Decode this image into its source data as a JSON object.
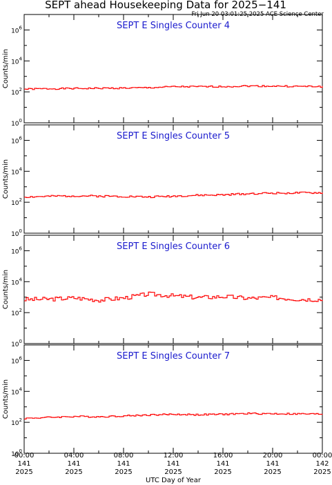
{
  "figure": {
    "title": "SEPT ahead Housekeeping Data for 2025−141",
    "timestamp": "Fri Jun 20 03:01:25 2025 ACE Science Center",
    "xlabel": "UTC Day of Year"
  },
  "chart_data": [
    {
      "type": "line",
      "title": "SEPT E Singles Counter 4",
      "ylabel": "Counts/min",
      "yscale": "log",
      "ylim": [
        1,
        10000000
      ],
      "yticks": [
        {
          "base": "10",
          "exp": "0"
        },
        {
          "base": "10",
          "exp": "2"
        },
        {
          "base": "10",
          "exp": "4"
        },
        {
          "base": "10",
          "exp": "6"
        }
      ],
      "xlim": [
        "141 00:00",
        "142 00:00"
      ],
      "color": "#ff0000",
      "x_hours": [
        0,
        2,
        4,
        6,
        8,
        10,
        12,
        14,
        16,
        18,
        20,
        22,
        24
      ],
      "values": [
        150,
        160,
        165,
        170,
        175,
        185,
        215,
        215,
        220,
        240,
        235,
        225,
        220
      ]
    },
    {
      "type": "line",
      "title": "SEPT E Singles Counter 5",
      "ylabel": "Counts/min",
      "yscale": "log",
      "ylim": [
        1,
        10000000
      ],
      "yticks": [
        {
          "base": "10",
          "exp": "0"
        },
        {
          "base": "10",
          "exp": "2"
        },
        {
          "base": "10",
          "exp": "4"
        },
        {
          "base": "10",
          "exp": "6"
        }
      ],
      "xlim": [
        "141 00:00",
        "142 00:00"
      ],
      "color": "#ff0000",
      "x_hours": [
        0,
        2,
        4,
        6,
        8,
        10,
        12,
        14,
        16,
        18,
        20,
        22,
        24
      ],
      "values": [
        220,
        240,
        260,
        250,
        240,
        220,
        250,
        280,
        300,
        360,
        390,
        400,
        410
      ]
    },
    {
      "type": "line",
      "title": "SEPT E Singles Counter 6",
      "ylabel": "Counts/min",
      "yscale": "log",
      "ylim": [
        1,
        10000000
      ],
      "yticks": [
        {
          "base": "10",
          "exp": "0"
        },
        {
          "base": "10",
          "exp": "2"
        },
        {
          "base": "10",
          "exp": "4"
        },
        {
          "base": "10",
          "exp": "6"
        }
      ],
      "xlim": [
        "141 00:00",
        "142 00:00"
      ],
      "color": "#ff0000",
      "x_hours": [
        0,
        2,
        4,
        6,
        8,
        10,
        12,
        14,
        16,
        18,
        20,
        22,
        24
      ],
      "values": [
        700,
        750,
        900,
        650,
        900,
        1600,
        1200,
        950,
        1100,
        850,
        950,
        750,
        700
      ]
    },
    {
      "type": "line",
      "title": "SEPT E Singles Counter 7",
      "ylabel": "Counts/min",
      "yscale": "log",
      "ylim": [
        1,
        10000000
      ],
      "yticks": [
        {
          "base": "10",
          "exp": "0"
        },
        {
          "base": "10",
          "exp": "2"
        },
        {
          "base": "10",
          "exp": "4"
        },
        {
          "base": "10",
          "exp": "6"
        }
      ],
      "xlim": [
        "141 00:00",
        "142 00:00"
      ],
      "color": "#ff0000",
      "x_hours": [
        0,
        2,
        4,
        6,
        8,
        10,
        12,
        14,
        16,
        18,
        20,
        22,
        24
      ],
      "values": [
        180,
        210,
        240,
        230,
        260,
        300,
        330,
        310,
        330,
        370,
        360,
        350,
        340
      ]
    }
  ],
  "xaxis": {
    "ticks": [
      {
        "time": "00:00",
        "doy": "141",
        "year": "2025"
      },
      {
        "time": "04:00",
        "doy": "141",
        "year": "2025"
      },
      {
        "time": "08:00",
        "doy": "141",
        "year": "2025"
      },
      {
        "time": "12:00",
        "doy": "141",
        "year": "2025"
      },
      {
        "time": "16:00",
        "doy": "141",
        "year": "2025"
      },
      {
        "time": "20:00",
        "doy": "141",
        "year": "2025"
      },
      {
        "time": "00:00",
        "doy": "142",
        "year": "2025"
      }
    ]
  }
}
